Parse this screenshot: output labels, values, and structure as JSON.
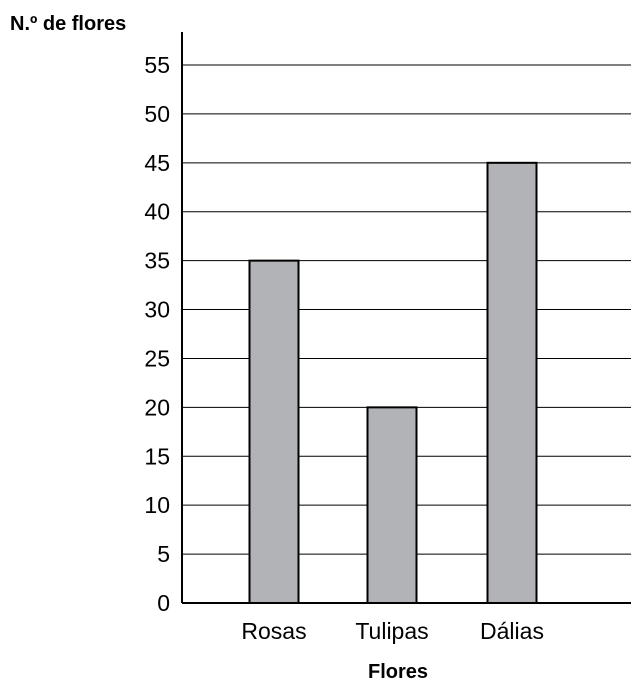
{
  "chart_data": {
    "type": "bar",
    "title": "",
    "ylabel": "N.º de flores",
    "xlabel": "Flores",
    "categories": [
      "Rosas",
      "Tulipas",
      "Dálias"
    ],
    "values": [
      35,
      20,
      45
    ],
    "ylim": [
      0,
      55
    ],
    "yticks": [
      0,
      5,
      10,
      15,
      20,
      25,
      30,
      35,
      40,
      45,
      50,
      55
    ],
    "grid": true,
    "legend": "none",
    "bar_color": "#b2b3b6",
    "bar_edge_color": "#000000"
  }
}
